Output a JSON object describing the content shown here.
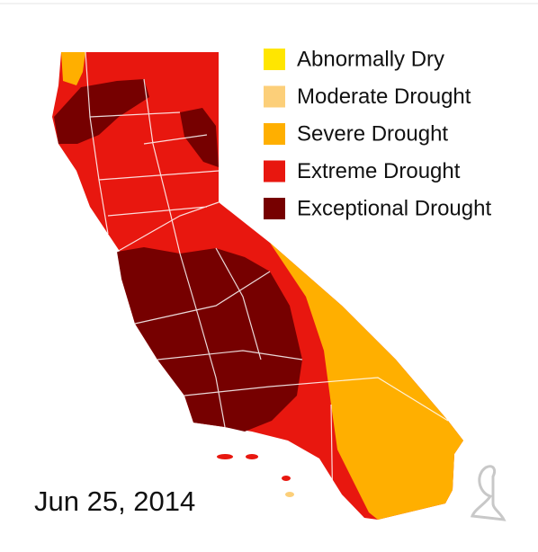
{
  "legend": {
    "items": [
      {
        "label": "Abnormally Dry",
        "color": "#ffe600"
      },
      {
        "label": "Moderate Drought",
        "color": "#fccf79"
      },
      {
        "label": "Severe Drought",
        "color": "#ffaf00"
      },
      {
        "label": "Extreme Drought",
        "color": "#e8170f"
      },
      {
        "label": "Exceptional Drought",
        "color": "#760000"
      }
    ]
  },
  "date": "Jun 25, 2014"
}
